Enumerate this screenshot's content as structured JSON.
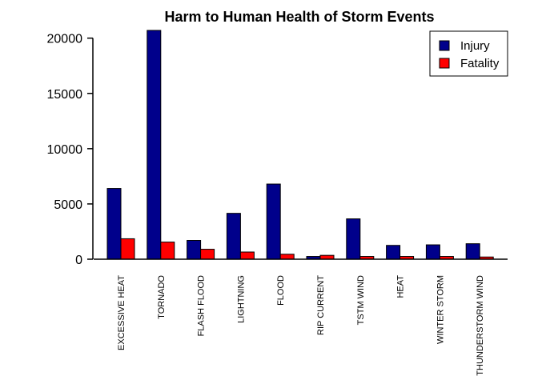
{
  "chart_data": {
    "type": "bar",
    "title": "Harm to Human Health of Storm Events",
    "xlabel": "",
    "ylabel": "",
    "ylim": [
      0,
      20700
    ],
    "yticks": [
      0,
      5000,
      10000,
      15000,
      20000
    ],
    "categories": [
      "EXCESSIVE HEAT",
      "TORNADO",
      "FLASH FLOOD",
      "LIGHTNING",
      "FLOOD",
      "RIP CURRENT",
      "TSTM WIND",
      "HEAT",
      "WINTER STORM",
      "THUNDERSTORM WIND"
    ],
    "series": [
      {
        "name": "Injury",
        "color": "#00008B",
        "values": [
          6400,
          20700,
          1700,
          4150,
          6800,
          250,
          3650,
          1250,
          1300,
          1400
        ]
      },
      {
        "name": "Fatality",
        "color": "#FF0000",
        "values": [
          1850,
          1550,
          900,
          650,
          450,
          350,
          250,
          250,
          250,
          200
        ]
      }
    ],
    "legend_position": "top-right",
    "grid": false
  }
}
